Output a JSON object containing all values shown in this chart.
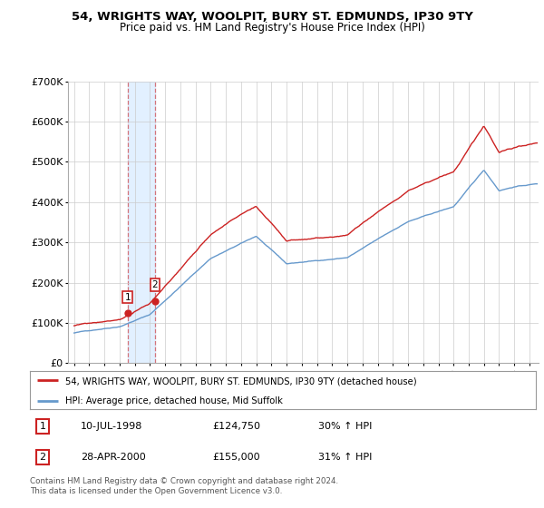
{
  "title": "54, WRIGHTS WAY, WOOLPIT, BURY ST. EDMUNDS, IP30 9TY",
  "subtitle": "Price paid vs. HM Land Registry's House Price Index (HPI)",
  "legend_line1": "54, WRIGHTS WAY, WOOLPIT, BURY ST. EDMUNDS, IP30 9TY (detached house)",
  "legend_line2": "HPI: Average price, detached house, Mid Suffolk",
  "footer": "Contains HM Land Registry data © Crown copyright and database right 2024.\nThis data is licensed under the Open Government Licence v3.0.",
  "transactions": [
    {
      "num": 1,
      "date": "10-JUL-1998",
      "price": 124750,
      "pct": "30% ↑ HPI"
    },
    {
      "num": 2,
      "date": "28-APR-2000",
      "price": 155000,
      "pct": "31% ↑ HPI"
    }
  ],
  "transaction_dates_year": [
    1998.52,
    2000.32
  ],
  "transaction_prices": [
    124750,
    155000
  ],
  "hpi_color": "#6699cc",
  "property_color": "#cc2222",
  "shaded_color": "#ddeeff",
  "ylim": [
    0,
    700000
  ],
  "yticks": [
    0,
    100000,
    200000,
    300000,
    400000,
    500000,
    600000,
    700000
  ],
  "ytick_labels": [
    "£0",
    "£100K",
    "£200K",
    "£300K",
    "£400K",
    "£500K",
    "£600K",
    "£700K"
  ],
  "xlim_start": 1994.6,
  "xlim_end": 2025.6,
  "bg_color": "#ffffff",
  "grid_color": "#cccccc"
}
